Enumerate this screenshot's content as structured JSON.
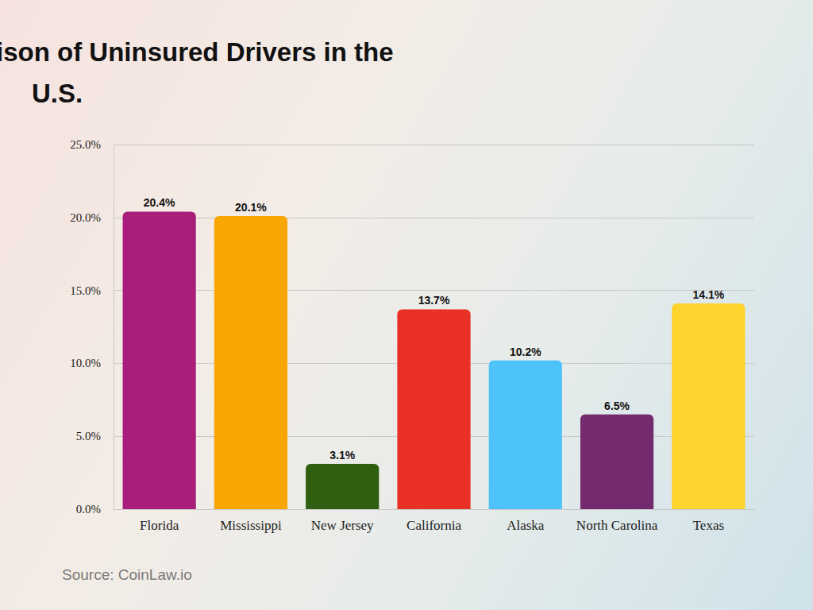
{
  "chart_data": {
    "type": "bar",
    "title": "State-by-State Comparison of Uninsured Drivers in the U.S.",
    "categories": [
      "Florida",
      "Mississippi",
      "New Jersey",
      "California",
      "Alaska",
      "North Carolina",
      "Texas"
    ],
    "values": [
      20.4,
      20.1,
      3.1,
      13.7,
      10.2,
      6.5,
      14.1
    ],
    "value_labels": [
      "20.4%",
      "20.1%",
      "3.1%",
      "13.7%",
      "10.2%",
      "6.5%",
      "14.1%"
    ],
    "colors": [
      "#a81e7a",
      "#f9a603",
      "#2f5f10",
      "#e83024",
      "#4dc3fa",
      "#742a6e",
      "#fdd32e"
    ],
    "ylim": [
      0,
      25
    ],
    "yticks": [
      {
        "value": 0,
        "label": "0.0%"
      },
      {
        "value": 5,
        "label": "5.0%"
      },
      {
        "value": 10,
        "label": "10.0%"
      },
      {
        "value": 15,
        "label": "15.0%"
      },
      {
        "value": 20,
        "label": "20.0%"
      },
      {
        "value": 25,
        "label": "25.0%"
      }
    ],
    "grid": true,
    "data_labels": true,
    "annotations": [
      "Source: CoinLaw.io"
    ]
  }
}
